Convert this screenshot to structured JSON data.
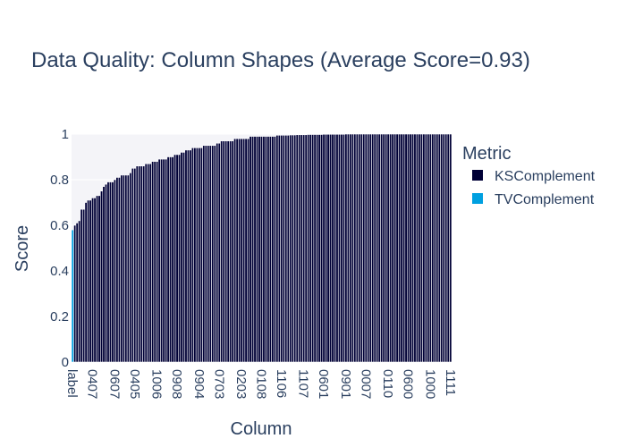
{
  "chart_data": {
    "type": "bar",
    "title": "Data Quality: Column Shapes (Average Score=0.93)",
    "xlabel": "Column",
    "ylabel": "Score",
    "ylim": [
      0,
      1
    ],
    "yticks": [
      0,
      0.2,
      0.4,
      0.6,
      0.8,
      1
    ],
    "ytick_labels": [
      "0",
      "0.2",
      "0.4",
      "0.6",
      "0.8",
      "1"
    ],
    "x_tick_labels": [
      "label",
      "0407",
      "0607",
      "0405",
      "1006",
      "0908",
      "0904",
      "0703",
      "0203",
      "0108",
      "1106",
      "1107",
      "0601",
      "0901",
      "0007",
      "0110",
      "0600",
      "1000",
      "1111"
    ],
    "legend": {
      "title": "Metric",
      "position": "right"
    },
    "series": [
      {
        "name": "TVComplement",
        "color": "#00a0e0",
        "values": [
          0.58
        ]
      },
      {
        "name": "KSComplement",
        "color": "#000036",
        "values": [
          0.6,
          0.61,
          0.62,
          0.67,
          0.67,
          0.7,
          0.71,
          0.71,
          0.72,
          0.72,
          0.73,
          0.73,
          0.75,
          0.77,
          0.78,
          0.79,
          0.79,
          0.79,
          0.8,
          0.81,
          0.81,
          0.82,
          0.82,
          0.82,
          0.82,
          0.83,
          0.85,
          0.85,
          0.86,
          0.86,
          0.86,
          0.86,
          0.87,
          0.87,
          0.87,
          0.88,
          0.88,
          0.88,
          0.89,
          0.89,
          0.89,
          0.89,
          0.9,
          0.9,
          0.9,
          0.91,
          0.91,
          0.91,
          0.92,
          0.92,
          0.93,
          0.93,
          0.93,
          0.94,
          0.94,
          0.94,
          0.94,
          0.94,
          0.95,
          0.95,
          0.95,
          0.95,
          0.95,
          0.95,
          0.96,
          0.96,
          0.97,
          0.97,
          0.97,
          0.97,
          0.97,
          0.97,
          0.98,
          0.98,
          0.98,
          0.98,
          0.98,
          0.98,
          0.98,
          0.99,
          0.99,
          0.99,
          0.99,
          0.99,
          0.99,
          0.99,
          0.99,
          0.99,
          0.99,
          0.99,
          0.99,
          0.995,
          0.995,
          0.995,
          0.995,
          0.995,
          0.995,
          0.996,
          0.996,
          0.996,
          0.997,
          0.997,
          0.997,
          0.997,
          0.997,
          0.998,
          0.998,
          0.998,
          0.998,
          0.998,
          0.998,
          0.998,
          0.999,
          0.999,
          0.999,
          0.999,
          0.999,
          0.999,
          0.999,
          0.999,
          0.999,
          0.999,
          1,
          1,
          1,
          1,
          1,
          1,
          1,
          1,
          1,
          1,
          1,
          1,
          1,
          1,
          1,
          1,
          1,
          1,
          1,
          1,
          1,
          1,
          1,
          1,
          1,
          1,
          1,
          1,
          1,
          1,
          1,
          1,
          1,
          1,
          1,
          1,
          1,
          1,
          1,
          1,
          1,
          1,
          1,
          1,
          1,
          1,
          1,
          1
        ]
      }
    ]
  },
  "colors": {
    "plot_bg": "#f4f4f8",
    "text": "#2a3f5f",
    "bar_outline": "#ffffff"
  }
}
